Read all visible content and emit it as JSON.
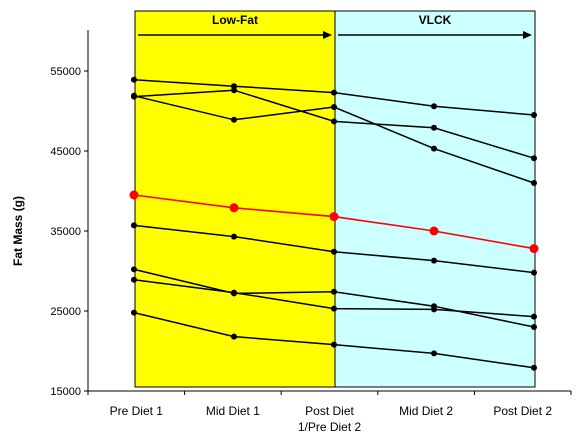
{
  "chart_data": {
    "type": "line",
    "title": "",
    "ylabel": "Fat Mass (g)",
    "xlabel": "",
    "ylim": [
      15000,
      60000
    ],
    "yticks": [
      15000,
      25000,
      35000,
      45000,
      55000
    ],
    "ytick_labels": [
      "15000",
      "25000",
      "35000",
      "45000",
      "55000"
    ],
    "categories": [
      [
        "Pre Diet 1"
      ],
      [
        "Mid Diet 1"
      ],
      [
        "Post Diet",
        "1/Pre Diet 2"
      ],
      [
        "Mid Diet 2"
      ],
      [
        "Post Diet 2"
      ]
    ],
    "bands": [
      {
        "label": "Low-Fat",
        "from": 0,
        "to": 2,
        "color": "#ffff00"
      },
      {
        "label": "VLCK",
        "from": 2,
        "to": 4,
        "color": "#ccffff"
      }
    ],
    "highlight_color": "#ff0000",
    "series_color": "#000000",
    "series": [
      {
        "values": [
          53900,
          53100,
          52300,
          50600,
          49500
        ]
      },
      {
        "values": [
          51800,
          52600,
          48700,
          47900,
          44100
        ]
      },
      {
        "values": [
          51900,
          48900,
          50500,
          45300,
          41000
        ]
      },
      {
        "values": [
          39500,
          37900,
          36800,
          35000,
          32800
        ],
        "highlight": true
      },
      {
        "values": [
          35700,
          34300,
          32400,
          31300,
          29800
        ]
      },
      {
        "values": [
          30200,
          27200,
          27400,
          25600,
          23000
        ]
      },
      {
        "values": [
          28900,
          27300,
          25300,
          25200,
          24300
        ]
      },
      {
        "values": [
          24800,
          21800,
          20800,
          19700,
          17900
        ]
      }
    ]
  }
}
